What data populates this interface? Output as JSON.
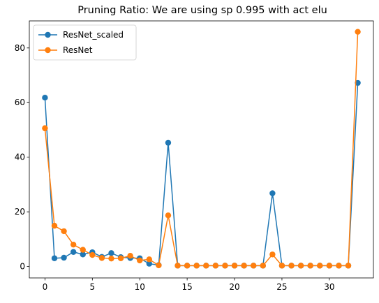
{
  "chart_data": {
    "type": "line",
    "title": "Pruning Ratio: We are using sp 0.995 with act elu",
    "xlabel": "",
    "ylabel": "",
    "xlim": [
      -1.65,
      34.65
    ],
    "ylim": [
      -4.2,
      89.9
    ],
    "xticks": [
      0,
      5,
      10,
      15,
      20,
      25,
      30
    ],
    "yticks": [
      0,
      20,
      40,
      60,
      80
    ],
    "grid": false,
    "legend_position": "upper-left",
    "x": [
      0,
      1,
      2,
      3,
      4,
      5,
      6,
      7,
      8,
      9,
      10,
      11,
      12,
      13,
      14,
      15,
      16,
      17,
      18,
      19,
      20,
      21,
      22,
      23,
      24,
      25,
      26,
      27,
      28,
      29,
      30,
      31,
      32,
      33
    ],
    "series": [
      {
        "name": "ResNet_scaled",
        "color": "#1f77b4",
        "values": [
          61.8,
          3.0,
          3.2,
          5.3,
          4.4,
          5.2,
          3.5,
          4.9,
          3.4,
          3.1,
          3.0,
          1.0,
          0.5,
          45.3,
          0.3,
          0.3,
          0.3,
          0.3,
          0.3,
          0.3,
          0.3,
          0.3,
          0.3,
          0.3,
          26.8,
          0.3,
          0.3,
          0.3,
          0.3,
          0.3,
          0.3,
          0.3,
          0.3,
          67.2
        ]
      },
      {
        "name": "ResNet",
        "color": "#ff7f0e",
        "values": [
          50.6,
          14.9,
          12.9,
          8.0,
          6.1,
          4.2,
          3.1,
          2.9,
          3.0,
          3.9,
          2.2,
          2.6,
          0.4,
          18.7,
          0.3,
          0.3,
          0.3,
          0.3,
          0.3,
          0.3,
          0.3,
          0.3,
          0.3,
          0.3,
          4.4,
          0.3,
          0.3,
          0.3,
          0.3,
          0.3,
          0.3,
          0.3,
          0.3,
          85.9
        ]
      }
    ]
  }
}
